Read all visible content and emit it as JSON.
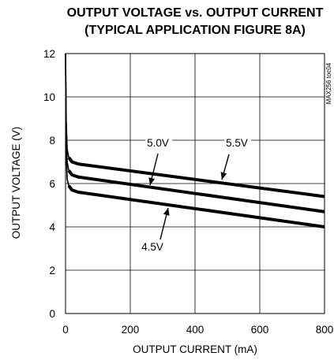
{
  "chart_data": {
    "type": "line",
    "title": "OUTPUT VOLTAGE vs. OUTPUT CURRENT",
    "subtitle": "(TYPICAL APPLICATION FIGURE 8A)",
    "xlabel": "OUTPUT CURRENT (mA)",
    "ylabel": "OUTPUT VOLTAGE (V)",
    "xlim": [
      0,
      800
    ],
    "ylim": [
      0,
      12
    ],
    "xticks": [
      0,
      200,
      400,
      600,
      800
    ],
    "yticks": [
      0,
      2,
      4,
      6,
      8,
      10,
      12
    ],
    "grid": true,
    "figure_code": "MAX256 toc04",
    "series": [
      {
        "name": "5.5V",
        "x": [
          0,
          2,
          5,
          10,
          20,
          40,
          800
        ],
        "y": [
          12,
          9.0,
          7.6,
          7.2,
          7.0,
          6.9,
          5.4
        ]
      },
      {
        "name": "5.0V",
        "x": [
          0,
          2,
          5,
          10,
          20,
          40,
          800
        ],
        "y": [
          12,
          8.5,
          7.0,
          6.6,
          6.4,
          6.3,
          4.7
        ]
      },
      {
        "name": "4.5V",
        "x": [
          0,
          2,
          5,
          10,
          20,
          40,
          800
        ],
        "y": [
          12,
          7.5,
          6.2,
          5.9,
          5.7,
          5.6,
          4.0
        ]
      }
    ],
    "annotations": [
      {
        "text": "5.0V",
        "series": "5.0V"
      },
      {
        "text": "5.5V",
        "series": "5.5V"
      },
      {
        "text": "4.5V",
        "series": "4.5V"
      }
    ]
  }
}
